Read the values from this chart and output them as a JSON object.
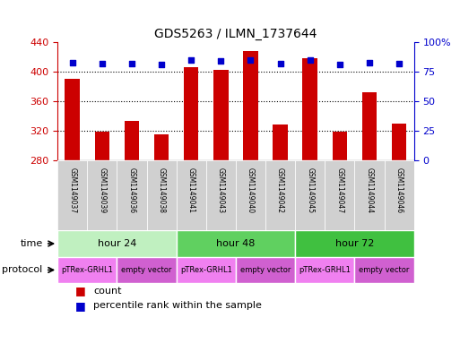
{
  "title": "GDS5263 / ILMN_1737644",
  "samples": [
    "GSM1149037",
    "GSM1149039",
    "GSM1149036",
    "GSM1149038",
    "GSM1149041",
    "GSM1149043",
    "GSM1149040",
    "GSM1149042",
    "GSM1149045",
    "GSM1149047",
    "GSM1149044",
    "GSM1149046"
  ],
  "counts": [
    390,
    319,
    333,
    315,
    406,
    403,
    428,
    328,
    418,
    319,
    372,
    330
  ],
  "percentiles": [
    83,
    82,
    82,
    81,
    85,
    84,
    85,
    82,
    85,
    81,
    83,
    82
  ],
  "ylim_left": [
    280,
    440
  ],
  "ylim_right": [
    0,
    100
  ],
  "yticks_left": [
    280,
    320,
    360,
    400,
    440
  ],
  "yticks_right": [
    0,
    25,
    50,
    75,
    100
  ],
  "time_groups": [
    {
      "label": "hour 24",
      "start": 0,
      "end": 4,
      "color": "#c0f0c0"
    },
    {
      "label": "hour 48",
      "start": 4,
      "end": 8,
      "color": "#60d060"
    },
    {
      "label": "hour 72",
      "start": 8,
      "end": 12,
      "color": "#40c040"
    }
  ],
  "protocol_groups": [
    {
      "label": "pTRex-GRHL1",
      "start": 0,
      "end": 2,
      "color": "#f080f0"
    },
    {
      "label": "empty vector",
      "start": 2,
      "end": 4,
      "color": "#d060d0"
    },
    {
      "label": "pTRex-GRHL1",
      "start": 4,
      "end": 6,
      "color": "#f080f0"
    },
    {
      "label": "empty vector",
      "start": 6,
      "end": 8,
      "color": "#d060d0"
    },
    {
      "label": "pTRex-GRHL1",
      "start": 8,
      "end": 10,
      "color": "#f080f0"
    },
    {
      "label": "empty vector",
      "start": 10,
      "end": 12,
      "color": "#d060d0"
    }
  ],
  "bar_color": "#cc0000",
  "dot_color": "#0000cc",
  "grid_color": "#000000",
  "axis_color_left": "#cc0000",
  "axis_color_right": "#0000cc",
  "sample_bg_color": "#d0d0d0",
  "bar_width": 0.5
}
